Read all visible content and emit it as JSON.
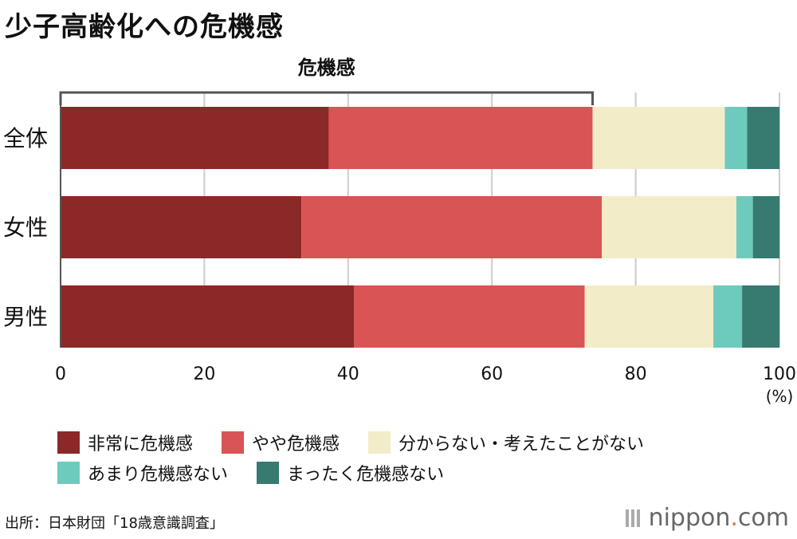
{
  "title": "少子高齢化への危機感",
  "chart_data": {
    "type": "bar",
    "orientation": "horizontal",
    "stacked": true,
    "categories": [
      "全体",
      "女性",
      "男性"
    ],
    "series": [
      {
        "name": "非常に危機感",
        "color": "#8b2828",
        "values": [
          37.3,
          33.5,
          40.8
        ]
      },
      {
        "name": "やや危機感",
        "color": "#d95454",
        "values": [
          36.7,
          41.8,
          32.1
        ]
      },
      {
        "name": "分からない・考えたことがない",
        "color": "#f2edc8",
        "values": [
          18.4,
          18.7,
          17.9
        ]
      },
      {
        "name": "あまり危機感ない",
        "color": "#6ccbbd",
        "values": [
          3.1,
          2.3,
          4.0
        ]
      },
      {
        "name": "まったく危機感ない",
        "color": "#367a70",
        "values": [
          4.5,
          3.7,
          5.2
        ]
      }
    ],
    "xlim": [
      0,
      100
    ],
    "xticks": [
      0,
      20,
      40,
      60,
      80,
      100
    ],
    "xunit": "(%)",
    "bracket_label": "危機感",
    "grid": true
  },
  "source": "出所：日本財団「18歳意識調査」",
  "brand": {
    "name": "nippon",
    "dot": ".",
    "suffix": "com"
  }
}
